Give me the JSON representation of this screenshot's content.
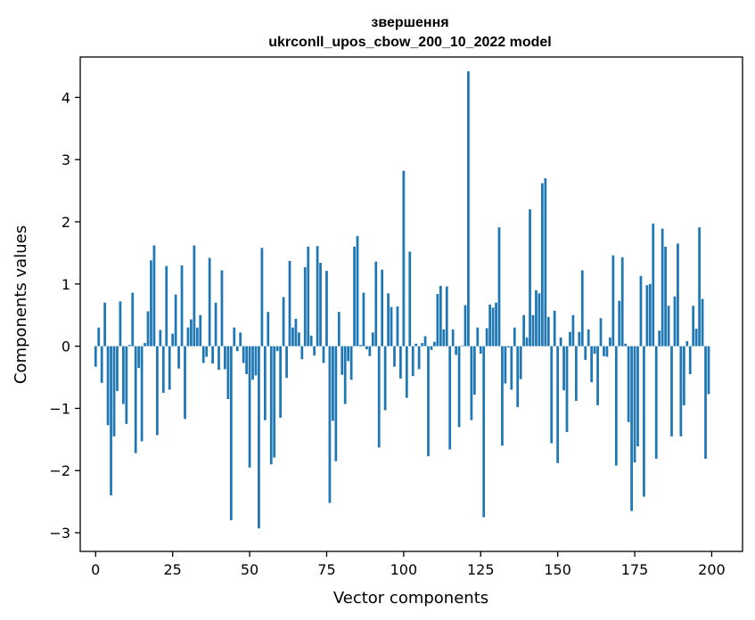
{
  "chart_data": {
    "type": "bar",
    "title": "звершення",
    "subtitle": "ukrconll_upos_cbow_200_10_2022 model",
    "xlabel": "Vector components",
    "ylabel": "Components values",
    "xlim": [
      -5,
      210
    ],
    "ylim": [
      -3.3,
      4.65
    ],
    "xticks": [
      0,
      25,
      50,
      75,
      100,
      125,
      150,
      175,
      200
    ],
    "yticks": [
      -3,
      -2,
      -1,
      0,
      1,
      2,
      3,
      4
    ],
    "bar_color": "#1f77b4",
    "x": [
      0,
      1,
      2,
      3,
      4,
      5,
      6,
      7,
      8,
      9,
      10,
      11,
      12,
      13,
      14,
      15,
      16,
      17,
      18,
      19,
      20,
      21,
      22,
      23,
      24,
      25,
      26,
      27,
      28,
      29,
      30,
      31,
      32,
      33,
      34,
      35,
      36,
      37,
      38,
      39,
      40,
      41,
      42,
      43,
      44,
      45,
      46,
      47,
      48,
      49,
      50,
      51,
      52,
      53,
      54,
      55,
      56,
      57,
      58,
      59,
      60,
      61,
      62,
      63,
      64,
      65,
      66,
      67,
      68,
      69,
      70,
      71,
      72,
      73,
      74,
      75,
      76,
      77,
      78,
      79,
      80,
      81,
      82,
      83,
      84,
      85,
      86,
      87,
      88,
      89,
      90,
      91,
      92,
      93,
      94,
      95,
      96,
      97,
      98,
      99,
      100,
      101,
      102,
      103,
      104,
      105,
      106,
      107,
      108,
      109,
      110,
      111,
      112,
      113,
      114,
      115,
      116,
      117,
      118,
      119,
      120,
      121,
      122,
      123,
      124,
      125,
      126,
      127,
      128,
      129,
      130,
      131,
      132,
      133,
      134,
      135,
      136,
      137,
      138,
      139,
      140,
      141,
      142,
      143,
      144,
      145,
      146,
      147,
      148,
      149,
      150,
      151,
      152,
      153,
      154,
      155,
      156,
      157,
      158,
      159,
      160,
      161,
      162,
      163,
      164,
      165,
      166,
      167,
      168,
      169,
      170,
      171,
      172,
      173,
      174,
      175,
      176,
      177,
      178,
      179,
      180,
      181,
      182,
      183,
      184,
      185,
      186,
      187,
      188,
      189,
      190,
      191,
      192,
      193,
      194,
      195,
      196,
      197,
      198,
      199
    ],
    "values": [
      -0.33,
      0.3,
      -0.59,
      0.7,
      -1.27,
      -2.4,
      -1.45,
      -0.72,
      0.72,
      -0.93,
      -1.25,
      0.02,
      0.86,
      -1.72,
      -0.35,
      -1.53,
      0.05,
      0.56,
      1.38,
      1.62,
      -1.43,
      0.26,
      -0.75,
      1.29,
      -0.7,
      0.2,
      0.83,
      -0.36,
      1.3,
      -1.17,
      0.3,
      0.43,
      1.62,
      0.3,
      0.5,
      -0.27,
      -0.17,
      1.42,
      -0.28,
      0.7,
      -0.38,
      1.22,
      -0.37,
      -0.85,
      -2.8,
      0.3,
      -0.08,
      0.22,
      -0.27,
      -0.45,
      -1.95,
      -0.54,
      -0.47,
      -2.93,
      1.58,
      -1.19,
      0.55,
      -1.9,
      -1.79,
      -0.08,
      -1.15,
      0.79,
      -0.51,
      1.37,
      0.3,
      0.44,
      0.22,
      -0.21,
      1.27,
      1.6,
      0.17,
      -0.15,
      1.61,
      1.34,
      -0.27,
      1.21,
      -2.52,
      -1.2,
      -1.85,
      0.55,
      -0.46,
      -0.93,
      -0.24,
      -0.54,
      1.6,
      1.77,
      0.02,
      0.86,
      -0.05,
      -0.16,
      0.22,
      1.36,
      -1.63,
      1.23,
      -1.03,
      0.85,
      0.63,
      -0.33,
      0.64,
      -0.52,
      2.82,
      -0.83,
      1.52,
      -0.48,
      0.04,
      -0.37,
      0.05,
      0.16,
      -1.77,
      -0.06,
      0.07,
      0.84,
      0.97,
      0.27,
      0.96,
      -1.66,
      0.27,
      -0.14,
      -1.3,
      0.01,
      0.66,
      4.42,
      -1.19,
      -0.78,
      0.3,
      -0.12,
      -2.75,
      0.29,
      0.67,
      0.62,
      0.7,
      1.91,
      -1.6,
      -0.6,
      -0.02,
      -0.7,
      0.3,
      -0.98,
      -0.53,
      0.5,
      0.14,
      2.2,
      0.5,
      0.9,
      0.85,
      2.62,
      2.7,
      0.47,
      -1.56,
      0.57,
      -1.88,
      0.14,
      -0.71,
      -1.38,
      0.23,
      0.5,
      -0.88,
      0.23,
      1.22,
      -0.22,
      0.27,
      -0.58,
      -0.12,
      -0.95,
      0.45,
      -0.16,
      -0.17,
      0.14,
      1.46,
      -1.92,
      0.73,
      1.43,
      0.04,
      -1.22,
      -2.65,
      -1.87,
      -1.61,
      1.13,
      -2.42,
      0.98,
      1.0,
      1.97,
      -1.81,
      0.25,
      1.89,
      1.6,
      0.65,
      -1.45,
      0.8,
      1.65,
      -1.45,
      -0.95,
      0.08,
      -0.45,
      0.65,
      0.28,
      1.91,
      0.76,
      -1.81,
      -0.77
    ]
  }
}
